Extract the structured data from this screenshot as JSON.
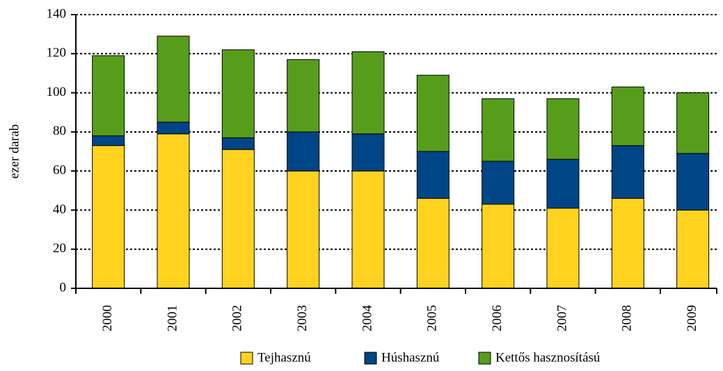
{
  "chart_data": {
    "type": "stacked_bar",
    "y_label": "ezer darab",
    "categories": [
      "2000",
      "2001",
      "2002",
      "2003",
      "2004",
      "2005",
      "2006",
      "2007",
      "2008",
      "2009"
    ],
    "series": [
      {
        "name": "Tejhasznú",
        "color": "#ffd320",
        "values": [
          73,
          79,
          71,
          60,
          60,
          46,
          43,
          41,
          46,
          40
        ]
      },
      {
        "name": "Húshasznú",
        "color": "#004586",
        "values": [
          5,
          6,
          6,
          20,
          19,
          24,
          22,
          25,
          27,
          29
        ]
      },
      {
        "name": "Kettős hasznosítású",
        "color": "#579d1c",
        "values": [
          41,
          44,
          45,
          37,
          42,
          39,
          32,
          31,
          30,
          31
        ]
      }
    ],
    "ylim": [
      0,
      140
    ],
    "yticks": [
      0,
      20,
      40,
      60,
      80,
      100,
      120,
      140
    ],
    "grid": true,
    "legend": "bottom"
  }
}
